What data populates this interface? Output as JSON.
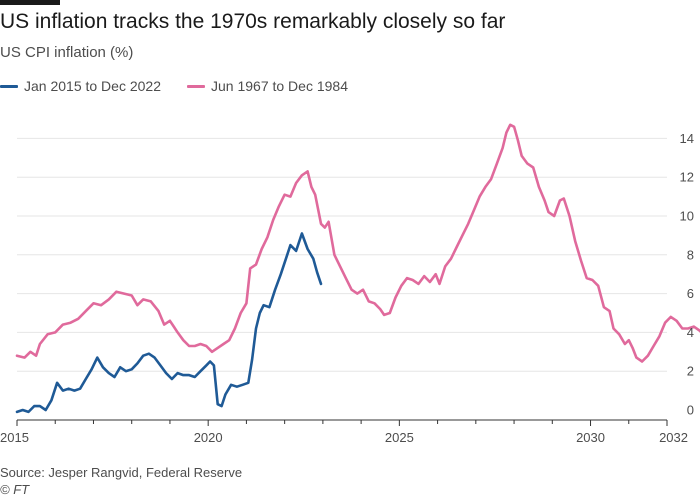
{
  "header": {
    "title": "US inflation tracks the 1970s remarkably closely so far",
    "subtitle": "US CPI inflation (%)"
  },
  "footer": {
    "source": "Source: Jesper Rangvid, Federal Reserve",
    "credit": "© FT"
  },
  "colors": {
    "series_recent": "#1f5a96",
    "series_1970s": "#e06a9c",
    "grid": "#e6e6e6",
    "axis": "#333333"
  },
  "chart_data": {
    "type": "line",
    "title": "US inflation tracks the 1970s remarkably closely so far",
    "ylabel": "US CPI inflation (%)",
    "xlim": [
      2015,
      2032
    ],
    "ylim": [
      0,
      15
    ],
    "x_ticks": [
      2015,
      2020,
      2025,
      2030,
      2032
    ],
    "y_ticks": [
      0,
      2,
      4,
      6,
      8,
      10,
      12,
      14
    ],
    "grid": "horizontal",
    "legend_position": "top-left",
    "series": [
      {
        "name": "Jan 2015 to Dec 2022",
        "color": "#1f5a96",
        "points": [
          [
            2015.0,
            -0.1
          ],
          [
            2015.15,
            0.0
          ],
          [
            2015.3,
            -0.1
          ],
          [
            2015.45,
            0.2
          ],
          [
            2015.6,
            0.2
          ],
          [
            2015.75,
            0.0
          ],
          [
            2015.9,
            0.5
          ],
          [
            2016.05,
            1.4
          ],
          [
            2016.2,
            1.0
          ],
          [
            2016.35,
            1.1
          ],
          [
            2016.5,
            1.0
          ],
          [
            2016.65,
            1.1
          ],
          [
            2016.8,
            1.6
          ],
          [
            2016.95,
            2.1
          ],
          [
            2017.1,
            2.7
          ],
          [
            2017.25,
            2.2
          ],
          [
            2017.4,
            1.9
          ],
          [
            2017.55,
            1.7
          ],
          [
            2017.7,
            2.2
          ],
          [
            2017.85,
            2.0
          ],
          [
            2018.0,
            2.1
          ],
          [
            2018.15,
            2.4
          ],
          [
            2018.3,
            2.8
          ],
          [
            2018.45,
            2.9
          ],
          [
            2018.6,
            2.7
          ],
          [
            2018.75,
            2.3
          ],
          [
            2018.9,
            1.9
          ],
          [
            2019.05,
            1.6
          ],
          [
            2019.2,
            1.9
          ],
          [
            2019.35,
            1.8
          ],
          [
            2019.5,
            1.8
          ],
          [
            2019.65,
            1.7
          ],
          [
            2019.8,
            2.0
          ],
          [
            2019.95,
            2.3
          ],
          [
            2020.05,
            2.5
          ],
          [
            2020.15,
            2.3
          ],
          [
            2020.25,
            0.3
          ],
          [
            2020.35,
            0.2
          ],
          [
            2020.45,
            0.8
          ],
          [
            2020.6,
            1.3
          ],
          [
            2020.75,
            1.2
          ],
          [
            2020.9,
            1.3
          ],
          [
            2021.05,
            1.4
          ],
          [
            2021.15,
            2.6
          ],
          [
            2021.25,
            4.2
          ],
          [
            2021.35,
            5.0
          ],
          [
            2021.45,
            5.4
          ],
          [
            2021.6,
            5.3
          ],
          [
            2021.75,
            6.2
          ],
          [
            2021.9,
            7.0
          ],
          [
            2022.05,
            7.9
          ],
          [
            2022.15,
            8.5
          ],
          [
            2022.3,
            8.2
          ],
          [
            2022.45,
            9.1
          ],
          [
            2022.6,
            8.3
          ],
          [
            2022.75,
            7.8
          ],
          [
            2022.85,
            7.1
          ],
          [
            2022.95,
            6.5
          ]
        ]
      },
      {
        "name": "Jun 1967 to Dec 1984",
        "color": "#e06a9c",
        "points": [
          [
            2015.0,
            2.8
          ],
          [
            2015.2,
            2.7
          ],
          [
            2015.35,
            3.0
          ],
          [
            2015.5,
            2.8
          ],
          [
            2015.6,
            3.4
          ],
          [
            2015.8,
            3.9
          ],
          [
            2016.0,
            4.0
          ],
          [
            2016.2,
            4.4
          ],
          [
            2016.4,
            4.5
          ],
          [
            2016.6,
            4.7
          ],
          [
            2016.8,
            5.1
          ],
          [
            2017.0,
            5.5
          ],
          [
            2017.2,
            5.4
          ],
          [
            2017.4,
            5.7
          ],
          [
            2017.6,
            6.1
          ],
          [
            2017.8,
            6.0
          ],
          [
            2018.0,
            5.9
          ],
          [
            2018.15,
            5.4
          ],
          [
            2018.3,
            5.7
          ],
          [
            2018.5,
            5.6
          ],
          [
            2018.7,
            5.1
          ],
          [
            2018.85,
            4.4
          ],
          [
            2019.0,
            4.6
          ],
          [
            2019.1,
            4.3
          ],
          [
            2019.2,
            4.0
          ],
          [
            2019.35,
            3.6
          ],
          [
            2019.5,
            3.3
          ],
          [
            2019.65,
            3.3
          ],
          [
            2019.8,
            3.4
          ],
          [
            2019.95,
            3.3
          ],
          [
            2020.1,
            3.0
          ],
          [
            2020.25,
            3.2
          ],
          [
            2020.4,
            3.4
          ],
          [
            2020.55,
            3.6
          ],
          [
            2020.7,
            4.2
          ],
          [
            2020.85,
            5.0
          ],
          [
            2021.0,
            5.5
          ],
          [
            2021.1,
            7.3
          ],
          [
            2021.25,
            7.5
          ],
          [
            2021.4,
            8.3
          ],
          [
            2021.55,
            8.9
          ],
          [
            2021.7,
            9.8
          ],
          [
            2021.85,
            10.5
          ],
          [
            2022.0,
            11.1
          ],
          [
            2022.15,
            11.0
          ],
          [
            2022.3,
            11.7
          ],
          [
            2022.45,
            12.1
          ],
          [
            2022.6,
            12.3
          ],
          [
            2022.7,
            11.5
          ],
          [
            2022.8,
            11.1
          ],
          [
            2022.95,
            9.6
          ],
          [
            2023.05,
            9.4
          ],
          [
            2023.15,
            9.7
          ],
          [
            2023.3,
            8.0
          ],
          [
            2023.45,
            7.4
          ],
          [
            2023.6,
            6.8
          ],
          [
            2023.75,
            6.2
          ],
          [
            2023.9,
            6.0
          ],
          [
            2024.05,
            6.2
          ],
          [
            2024.2,
            5.6
          ],
          [
            2024.35,
            5.5
          ],
          [
            2024.5,
            5.2
          ],
          [
            2024.6,
            4.9
          ],
          [
            2024.75,
            5.0
          ],
          [
            2024.9,
            5.8
          ],
          [
            2025.05,
            6.4
          ],
          [
            2025.2,
            6.8
          ],
          [
            2025.35,
            6.7
          ],
          [
            2025.5,
            6.5
          ],
          [
            2025.65,
            6.9
          ],
          [
            2025.8,
            6.6
          ],
          [
            2025.95,
            7.0
          ],
          [
            2026.05,
            6.5
          ],
          [
            2026.2,
            7.4
          ],
          [
            2026.35,
            7.8
          ],
          [
            2026.5,
            8.4
          ],
          [
            2026.65,
            9.0
          ],
          [
            2026.8,
            9.6
          ],
          [
            2026.95,
            10.3
          ],
          [
            2027.1,
            11.0
          ],
          [
            2027.25,
            11.5
          ],
          [
            2027.4,
            11.9
          ],
          [
            2027.55,
            12.7
          ],
          [
            2027.7,
            13.5
          ],
          [
            2027.8,
            14.3
          ],
          [
            2027.9,
            14.7
          ],
          [
            2028.0,
            14.6
          ],
          [
            2028.1,
            13.9
          ],
          [
            2028.2,
            13.1
          ],
          [
            2028.35,
            12.7
          ],
          [
            2028.5,
            12.5
          ],
          [
            2028.65,
            11.5
          ],
          [
            2028.8,
            10.8
          ],
          [
            2028.9,
            10.2
          ],
          [
            2029.05,
            10.0
          ],
          [
            2029.2,
            10.8
          ],
          [
            2029.3,
            10.9
          ],
          [
            2029.45,
            10.0
          ],
          [
            2029.6,
            8.7
          ],
          [
            2029.75,
            7.7
          ],
          [
            2029.9,
            6.8
          ],
          [
            2030.05,
            6.7
          ],
          [
            2030.2,
            6.4
          ],
          [
            2030.35,
            5.3
          ],
          [
            2030.5,
            5.1
          ],
          [
            2030.6,
            4.2
          ],
          [
            2030.75,
            3.9
          ],
          [
            2030.9,
            3.4
          ],
          [
            2031.0,
            3.6
          ],
          [
            2031.1,
            3.2
          ],
          [
            2031.2,
            2.7
          ],
          [
            2031.35,
            2.5
          ],
          [
            2031.5,
            2.8
          ],
          [
            2031.65,
            3.3
          ],
          [
            2031.8,
            3.8
          ],
          [
            2031.95,
            4.5
          ],
          [
            2032.1,
            4.8
          ],
          [
            2032.25,
            4.6
          ],
          [
            2032.4,
            4.2
          ],
          [
            2032.55,
            4.2
          ],
          [
            2032.7,
            4.3
          ],
          [
            2032.85,
            4.1
          ],
          [
            2032.95,
            3.9
          ]
        ]
      }
    ]
  }
}
